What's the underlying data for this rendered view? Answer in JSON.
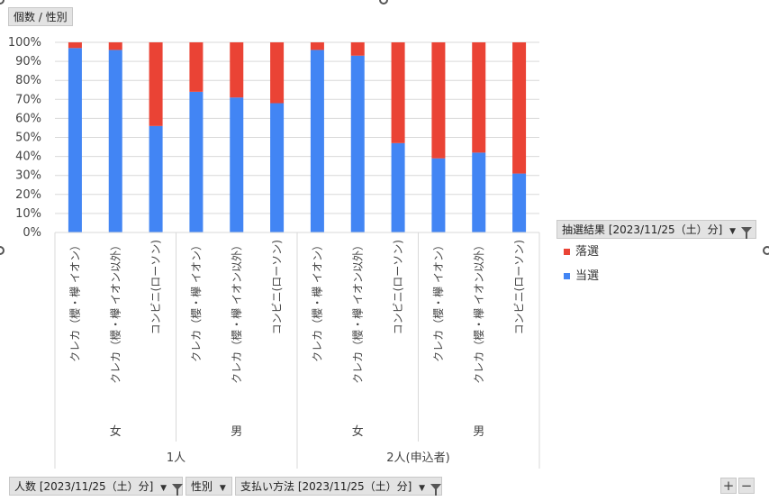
{
  "chart_data": {
    "type": "bar",
    "stacked": true,
    "percent": true,
    "title": "",
    "value_field": "個数 / 性別",
    "categories": [
      "クレカ（櫻・欅 イオン）",
      "クレカ（櫻・欅 イオン以外）",
      "コンビニ(ローソン)",
      "クレカ（櫻・欅 イオン）",
      "クレカ（櫻・欅 イオン以外）",
      "コンビニ(ローソン)",
      "クレカ（櫻・欅 イオン）",
      "クレカ（櫻・欅 イオン以外）",
      "コンビニ(ローソン)",
      "クレカ（櫻・欅 イオン）",
      "クレカ（櫻・欅 イオン以外）",
      "コンビニ(ローソン)"
    ],
    "gender_groups": [
      {
        "label": "女",
        "span": 3
      },
      {
        "label": "男",
        "span": 3
      },
      {
        "label": "女",
        "span": 3
      },
      {
        "label": "男",
        "span": 3
      }
    ],
    "count_groups": [
      {
        "label": "1人",
        "span": 6
      },
      {
        "label": "2人(申込者)",
        "span": 6
      }
    ],
    "series": [
      {
        "name": "当選",
        "color": "#4285f4",
        "values": [
          97,
          96,
          56,
          74,
          71,
          68,
          96,
          93,
          47,
          39,
          42,
          31
        ]
      },
      {
        "name": "落選",
        "color": "#ea4335",
        "values": [
          3,
          4,
          44,
          26,
          29,
          32,
          4,
          7,
          53,
          61,
          58,
          69
        ]
      }
    ],
    "ylim": [
      0,
      100
    ],
    "yticks": [
      "0%",
      "10%",
      "20%",
      "30%",
      "40%",
      "50%",
      "60%",
      "70%",
      "80%",
      "90%",
      "100%"
    ],
    "grid": true,
    "legend_title": "抽選結果 [2023/11/25（土）分]",
    "legend_position": "right"
  },
  "filters": {
    "people": "人数 [2023/11/25（土）分]",
    "gender": "性別",
    "payment": "支払い方法 [2023/11/25（土）分]"
  },
  "zoom": {
    "plus": "+",
    "minus": "−"
  }
}
